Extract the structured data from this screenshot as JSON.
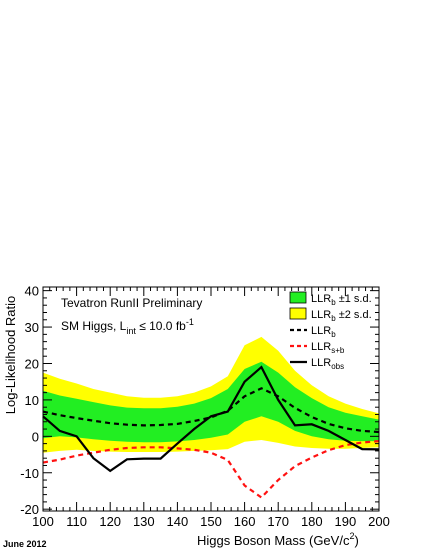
{
  "chart_data": {
    "type": "line",
    "title": "Tevatron RunII Preliminary",
    "subtitle_main": "SM Higgs, L",
    "subtitle_sub": "int",
    "subtitle_rest": " ≤ 10.0 fb",
    "subtitle_sup": "-1",
    "xlabel_main": "Higgs Boson Mass (GeV/c",
    "xlabel_sup": "2",
    "xlabel_end": ")",
    "ylabel": "Log-Likelihood Ratio",
    "footnote": "June 2012",
    "xlim": [
      100,
      200
    ],
    "ylim": [
      -20.5,
      41
    ],
    "x_ticks": [
      100,
      110,
      120,
      130,
      140,
      150,
      160,
      170,
      180,
      190,
      200
    ],
    "y_ticks": [
      -20,
      -10,
      0,
      10,
      20,
      30,
      40
    ],
    "colors": {
      "band1": "#22ee22",
      "band2": "#ffff00",
      "expected_b": "#000000",
      "expected_sb": "#ff1111",
      "observed": "#000000"
    },
    "x": [
      100,
      105,
      110,
      115,
      120,
      125,
      130,
      135,
      140,
      145,
      150,
      155,
      160,
      165,
      170,
      175,
      180,
      185,
      190,
      195,
      200
    ],
    "series": [
      {
        "name": "LLR_b",
        "values": [
          6.8,
          5.8,
          5.0,
          4.3,
          3.6,
          3.2,
          3.0,
          3.1,
          3.4,
          4.2,
          5.2,
          7.0,
          11.0,
          13.2,
          11.0,
          7.8,
          5.3,
          3.4,
          2.2,
          1.5,
          1.2
        ]
      },
      {
        "name": "LLR_s+b",
        "values": [
          -7.2,
          -6.4,
          -5.3,
          -4.5,
          -3.7,
          -3.2,
          -3.0,
          -3.0,
          -3.3,
          -3.7,
          -4.5,
          -6.5,
          -13.5,
          -16.8,
          -12.0,
          -8.2,
          -5.8,
          -3.8,
          -2.4,
          -1.7,
          -1.3
        ]
      },
      {
        "name": "LLR_obs",
        "values": [
          5.5,
          1.5,
          0.0,
          -6.0,
          -9.5,
          -6.3,
          -6.1,
          -6.1,
          -2.0,
          2.0,
          5.5,
          6.8,
          15.0,
          19.0,
          10.0,
          3.0,
          3.3,
          1.5,
          -1.0,
          -3.5,
          -3.6
        ]
      }
    ],
    "band_1sd_lower": [
      -0.5,
      0.0,
      -0.3,
      -0.8,
      -1.2,
      -1.5,
      -1.6,
      -1.6,
      -1.4,
      -1.0,
      -0.4,
      0.5,
      4.0,
      5.5,
      4.0,
      1.5,
      0.0,
      -0.8,
      -1.2,
      -1.3,
      -1.3
    ],
    "band_1sd_upper": [
      12.5,
      11.2,
      10.3,
      9.4,
      8.5,
      7.9,
      7.7,
      7.7,
      8.1,
      9.0,
      10.5,
      13.0,
      18.5,
      20.5,
      17.5,
      13.5,
      10.5,
      8.0,
      6.5,
      5.5,
      4.6
    ],
    "band_2sd_lower": [
      -4.5,
      -4.0,
      -3.7,
      -4.0,
      -4.2,
      -4.3,
      -4.3,
      -4.3,
      -4.2,
      -4.0,
      -3.8,
      -3.5,
      -1.5,
      -1.0,
      -1.8,
      -2.8,
      -3.2,
      -3.4,
      -3.4,
      -3.2,
      -3.0
    ],
    "band_2sd_upper": [
      17.5,
      15.8,
      14.5,
      13.0,
      12.0,
      11.0,
      10.6,
      10.6,
      11.0,
      12.0,
      13.7,
      16.5,
      25.0,
      27.3,
      23.5,
      18.0,
      14.0,
      11.0,
      9.0,
      7.5,
      6.3
    ],
    "legend": {
      "position": "top-right",
      "entries": [
        {
          "label": "LLR",
          "sub": "b",
          "rest": " ±1 s.d.",
          "kind": "band1"
        },
        {
          "label": "LLR",
          "sub": "b",
          "rest": " ±2 s.d.",
          "kind": "band2"
        },
        {
          "label": "LLR",
          "sub": "b",
          "rest": "",
          "kind": "expected_b"
        },
        {
          "label": "LLR",
          "sub": "s+b",
          "rest": "",
          "kind": "expected_sb"
        },
        {
          "label": "LLR",
          "sub": "obs",
          "rest": "",
          "kind": "observed"
        }
      ]
    }
  }
}
